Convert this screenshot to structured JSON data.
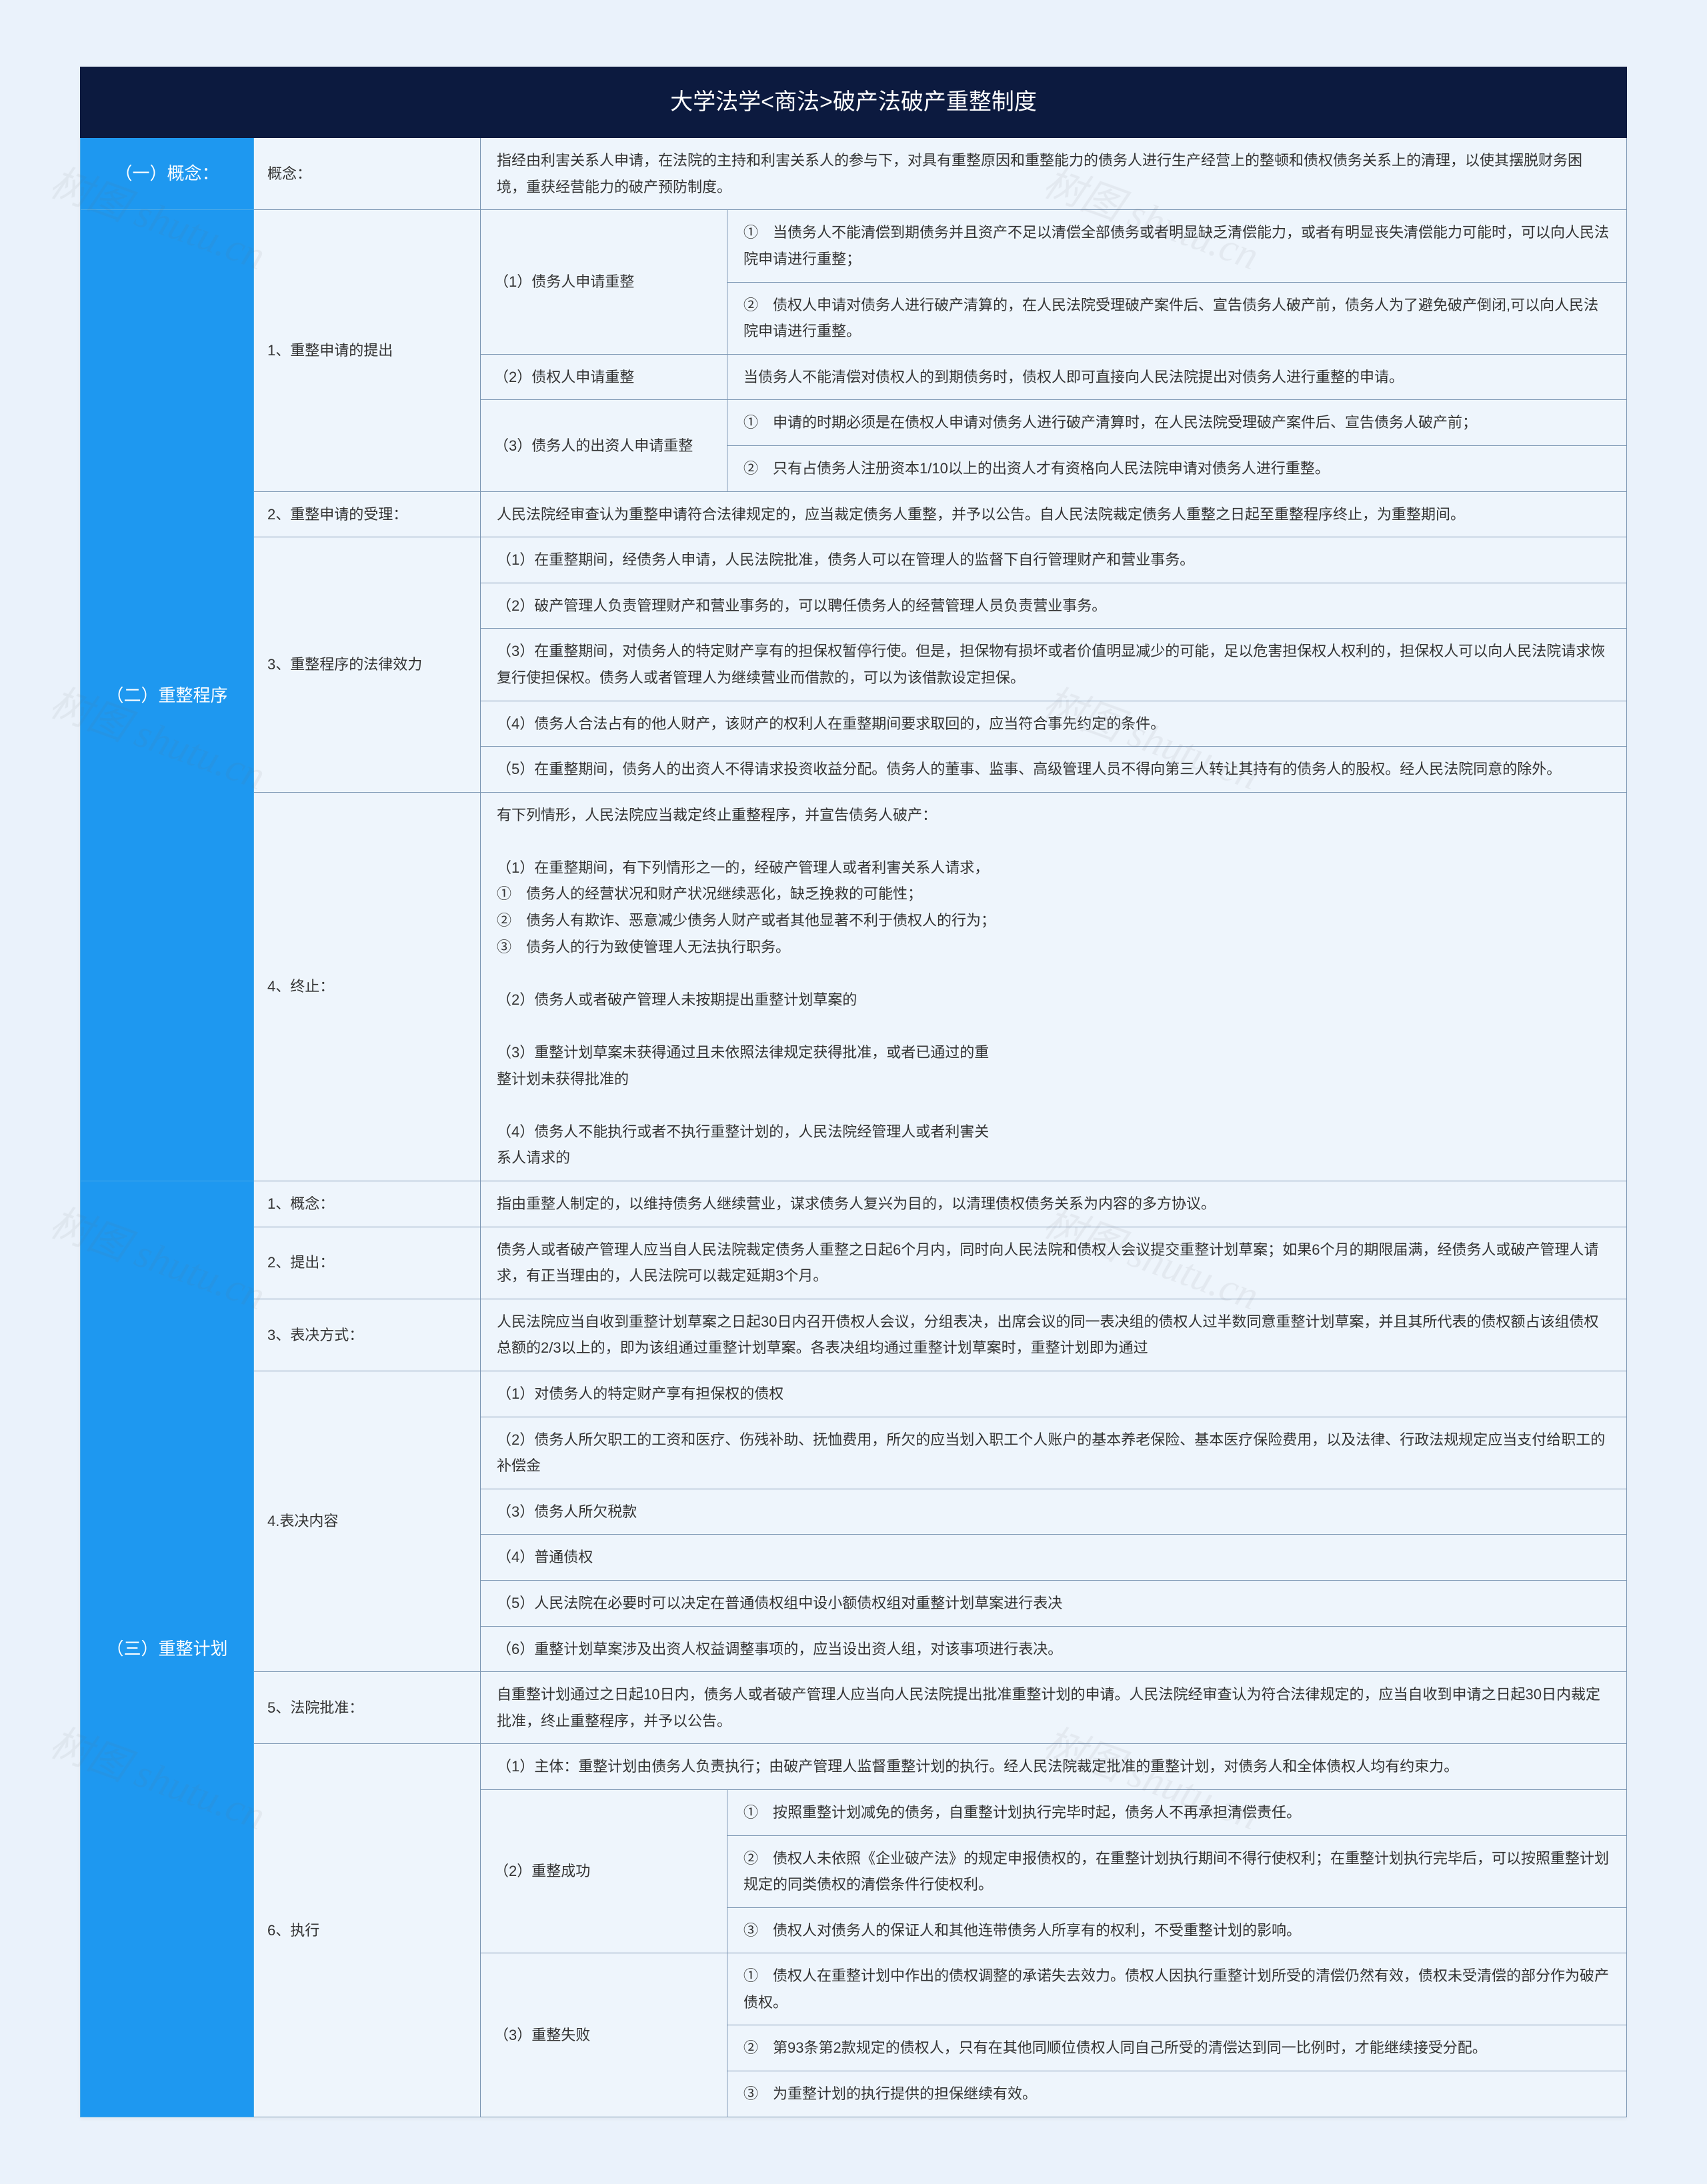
{
  "watermark": "树图 shutu.cn",
  "title": "大学法学<商法>破产法破产重整制度",
  "colors": {
    "page_bg": "#eaf2fb",
    "title_bg": "#0c1a3f",
    "title_fg": "#ffffff",
    "section_bg": "#1e98f0",
    "section_fg": "#ffffff",
    "cell_bg": "#eef5fc",
    "border": "#7c96b3",
    "text": "#333333"
  },
  "layout": {
    "col_section_w": 260,
    "col_sub1_w": 340,
    "col_sub2_w": 370,
    "body_fontsize": 22,
    "title_fontsize": 34
  },
  "sections": [
    {
      "label": "（一）概念：",
      "rows": [
        {
          "sub1": "概念：",
          "content": "指经由利害关系人申请，在法院的主持和利害关系人的参与下，对具有重整原因和重整能力的债务人进行生产经营上的整顿和债权债务关系上的清理，以使其摆脱财务困境，重获经营能力的破产预防制度。"
        }
      ]
    },
    {
      "label": "（二）重整程序",
      "groups": [
        {
          "sub1": "1、重整申请的提出",
          "rows": [
            {
              "sub2": "（1）债务人申请重整",
              "items": [
                "①　当债务人不能清偿到期债务并且资产不足以清偿全部债务或者明显缺乏清偿能力，或者有明显丧失清偿能力可能时，可以向人民法院申请进行重整；",
                "②　债权人申请对债务人进行破产清算的，在人民法院受理破产案件后、宣告债务人破产前，债务人为了避免破产倒闭,可以向人民法院申请进行重整。"
              ]
            },
            {
              "sub2": "（2）债权人申请重整",
              "items": [
                "当债务人不能清偿对债权人的到期债务时，债权人即可直接向人民法院提出对债务人进行重整的申请。"
              ]
            },
            {
              "sub2": "（3）债务人的出资人申请重整",
              "items": [
                "①　申请的时期必须是在债权人申请对债务人进行破产清算时，在人民法院受理破产案件后、宣告债务人破产前；",
                "②　只有占债务人注册资本1/10以上的出资人才有资格向人民法院申请对债务人进行重整。"
              ]
            }
          ]
        },
        {
          "sub1": "2、重整申请的受理：",
          "flat": "人民法院经审查认为重整申请符合法律规定的，应当裁定债务人重整，并予以公告。自人民法院裁定债务人重整之日起至重整程序终止，为重整期间。"
        },
        {
          "sub1": "3、重整程序的法律效力",
          "list": [
            "（1）在重整期间，经债务人申请，人民法院批准，债务人可以在管理人的监督下自行管理财产和营业事务。",
            "（2）破产管理人负责管理财产和营业事务的，可以聘任债务人的经营管理人员负责营业事务。",
            "（3）在重整期间，对债务人的特定财产享有的担保权暂停行使。但是，担保物有损坏或者价值明显减少的可能，足以危害担保权人权利的，担保权人可以向人民法院请求恢复行使担保权。债务人或者管理人为继续营业而借款的，可以为该借款设定担保。",
            "（4）债务人合法占有的他人财产，该财产的权利人在重整期间要求取回的，应当符合事先约定的条件。",
            "（5）在重整期间，债务人的出资人不得请求投资收益分配。债务人的董事、监事、高级管理人员不得向第三人转让其持有的债务人的股权。经人民法院同意的除外。"
          ]
        },
        {
          "sub1": "4、终止：",
          "block": "有下列情形，人民法院应当裁定终止重整程序，并宣告债务人破产：\n\n（1）在重整期间，有下列情形之一的，经破产管理人或者利害关系人请求，\n①　债务人的经营状况和财产状况继续恶化，缺乏挽救的可能性；\n②　债务人有欺诈、恶意减少债务人财产或者其他显著不利于债权人的行为；\n③　债务人的行为致使管理人无法执行职务。\n\n（2）债务人或者破产管理人未按期提出重整计划草案的\n\n（3）重整计划草案未获得通过且未依照法律规定获得批准，或者已通过的重\n整计划未获得批准的\n\n（4）债务人不能执行或者不执行重整计划的，人民法院经管理人或者利害关\n系人请求的"
        }
      ]
    },
    {
      "label": "（三）重整计划",
      "groups": [
        {
          "sub1": "1、概念：",
          "flat": "指由重整人制定的，以维持债务人继续营业，谋求债务人复兴为目的，以清理债权债务关系为内容的多方协议。"
        },
        {
          "sub1": "2、提出：",
          "flat": "债务人或者破产管理人应当自人民法院裁定债务人重整之日起6个月内，同时向人民法院和债权人会议提交重整计划草案；如果6个月的期限届满，经债务人或破产管理人请求，有正当理由的，人民法院可以裁定延期3个月。"
        },
        {
          "sub1": "3、表决方式：",
          "flat": "人民法院应当自收到重整计划草案之日起30日内召开债权人会议，分组表决，出席会议的同一表决组的债权人过半数同意重整计划草案，并且其所代表的债权额占该组债权总额的2/3以上的，即为该组通过重整计划草案。各表决组均通过重整计划草案时，重整计划即为通过"
        },
        {
          "sub1": "4.表决内容",
          "list": [
            "（1）对债务人的特定财产享有担保权的债权",
            "（2）债务人所欠职工的工资和医疗、伤残补助、抚恤费用，所欠的应当划入职工个人账户的基本养老保险、基本医疗保险费用，以及法律、行政法规规定应当支付给职工的补偿金",
            "（3）债务人所欠税款",
            "（4）普通债权",
            "（5）人民法院在必要时可以决定在普通债权组中设小额债权组对重整计划草案进行表决",
            "（6）重整计划草案涉及出资人权益调整事项的，应当设出资人组，对该事项进行表决。"
          ]
        },
        {
          "sub1": "5、法院批准：",
          "flat": "自重整计划通过之日起10日内，债务人或者破产管理人应当向人民法院提出批准重整计划的申请。人民法院经审查认为符合法律规定的，应当自收到申请之日起30日内裁定批准，终止重整程序，并予以公告。"
        },
        {
          "sub1": "6、执行",
          "exec": {
            "head": "（1）主体：重整计划由债务人负责执行；由破产管理人监督重整计划的执行。经人民法院裁定批准的重整计划，对债务人和全体债权人均有约束力。",
            "groups": [
              {
                "sub2": "（2）重整成功",
                "items": [
                  "①　按照重整计划减免的债务，自重整计划执行完毕时起，债务人不再承担清偿责任。",
                  "②　债权人未依照《企业破产法》的规定申报债权的，在重整计划执行期间不得行使权利；在重整计划执行完毕后，可以按照重整计划规定的同类债权的清偿条件行使权利。",
                  "③　债权人对债务人的保证人和其他连带债务人所享有的权利，不受重整计划的影响。"
                ]
              },
              {
                "sub2": "（3）重整失败",
                "items": [
                  "①　债权人在重整计划中作出的债权调整的承诺失去效力。债权人因执行重整计划所受的清偿仍然有效，债权未受清偿的部分作为破产债权。",
                  "②　第93条第2款规定的债权人，只有在其他同顺位债权人同自己所受的清偿达到同一比例时，才能继续接受分配。",
                  "③　为重整计划的执行提供的担保继续有效。"
                ]
              }
            ]
          }
        }
      ]
    }
  ]
}
